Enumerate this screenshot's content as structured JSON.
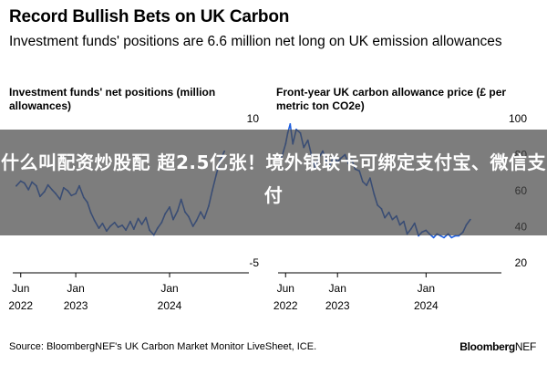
{
  "header": {
    "title": "Record Bullish Bets on UK Carbon",
    "subtitle": "Investment funds' positions are 6.6 million net long on UK emission allowances"
  },
  "overlay": {
    "text": "什么叫配资炒股配 超2.5亿张！境外银联卡可绑定支付宝、微信支付"
  },
  "footer": {
    "source": "Source: BloombergNEF's UK Carbon Market Monitor LiveSheet, ICE.",
    "brand_main": "Bloomberg",
    "brand_suffix": "NEF"
  },
  "colors": {
    "line": "#1f5fe0",
    "axis": "#000000",
    "overlay": "#464646"
  },
  "chart_data": [
    {
      "type": "line",
      "title": "Investment funds' net positions (million allowances)",
      "ylim": [
        -5,
        10
      ],
      "yticks": [
        -5,
        0,
        5,
        10
      ],
      "ytick_labels": [
        "-5",
        "",
        "",
        "10"
      ],
      "xlim": [
        "2022-05-01",
        "2024-09-30"
      ],
      "xticks": [
        {
          "date": "2022-06-01",
          "label1": "Jun",
          "label2": "2022"
        },
        {
          "date": "2023-01-01",
          "label1": "Jan",
          "label2": "2023"
        },
        {
          "date": "2024-01-01",
          "label1": "Jan",
          "label2": "2024"
        }
      ],
      "grid": false,
      "series": [
        {
          "x": [
            "2022-05-15",
            "2022-06-01",
            "2022-06-15",
            "2022-07-01",
            "2022-07-15",
            "2022-08-01",
            "2022-08-15",
            "2022-09-01",
            "2022-09-15",
            "2022-10-01",
            "2022-10-15",
            "2022-11-01",
            "2022-11-15",
            "2022-12-01",
            "2022-12-15",
            "2023-01-01",
            "2023-01-15",
            "2023-02-01",
            "2023-02-15",
            "2023-03-01",
            "2023-03-15",
            "2023-04-01",
            "2023-04-15",
            "2023-05-01",
            "2023-05-15",
            "2023-06-01",
            "2023-06-15",
            "2023-07-01",
            "2023-07-15",
            "2023-08-01",
            "2023-08-15",
            "2023-09-01",
            "2023-09-15",
            "2023-10-01",
            "2023-10-15",
            "2023-11-01",
            "2023-11-15",
            "2023-12-01",
            "2023-12-15",
            "2024-01-01",
            "2024-01-15",
            "2024-02-01",
            "2024-02-15",
            "2024-03-01",
            "2024-03-15",
            "2024-04-01",
            "2024-04-15",
            "2024-05-01",
            "2024-05-15",
            "2024-06-01",
            "2024-06-15",
            "2024-07-01",
            "2024-07-15",
            "2024-08-01"
          ],
          "y": [
            3.0,
            3.5,
            3.3,
            2.6,
            3.4,
            3.0,
            1.9,
            2.4,
            3.1,
            2.6,
            2.2,
            1.6,
            2.8,
            2.5,
            2.0,
            2.2,
            3.0,
            1.8,
            1.3,
            0.2,
            -0.6,
            -1.4,
            -0.9,
            -1.7,
            -1.2,
            -0.8,
            -1.3,
            -1.1,
            -1.6,
            -0.7,
            -1.5,
            -0.4,
            -1.0,
            -0.3,
            -1.6,
            -2.1,
            -1.4,
            -0.8,
            0.1,
            0.8,
            -0.5,
            0.4,
            1.6,
            0.3,
            -0.2,
            -1.2,
            -0.6,
            0.3,
            -0.4,
            0.9,
            2.5,
            4.2,
            5.6,
            6.6
          ]
        }
      ]
    },
    {
      "type": "line",
      "title": "Front-year UK carbon allowance price (£ per metric ton CO2e)",
      "ylim": [
        20,
        100
      ],
      "yticks": [
        20,
        40,
        60,
        80,
        100
      ],
      "ytick_labels": [
        "20",
        "40",
        "60",
        "80",
        "100"
      ],
      "xlim": [
        "2022-05-01",
        "2024-09-30"
      ],
      "xticks": [
        {
          "date": "2022-06-01",
          "label1": "Jun",
          "label2": "2022"
        },
        {
          "date": "2023-01-01",
          "label1": "Jan",
          "label2": "2023"
        },
        {
          "date": "2024-01-01",
          "label1": "Jan",
          "label2": "2024"
        }
      ],
      "grid": false,
      "series": [
        {
          "x": [
            "2022-05-15",
            "2022-06-01",
            "2022-06-10",
            "2022-06-20",
            "2022-07-01",
            "2022-07-15",
            "2022-08-01",
            "2022-08-15",
            "2022-09-01",
            "2022-09-15",
            "2022-10-01",
            "2022-10-15",
            "2022-11-01",
            "2022-11-15",
            "2022-12-01",
            "2022-12-15",
            "2023-01-01",
            "2023-01-15",
            "2023-02-01",
            "2023-02-15",
            "2023-03-01",
            "2023-03-15",
            "2023-04-01",
            "2023-04-15",
            "2023-05-01",
            "2023-05-15",
            "2023-06-01",
            "2023-06-15",
            "2023-07-01",
            "2023-07-15",
            "2023-08-01",
            "2023-08-15",
            "2023-09-01",
            "2023-09-15",
            "2023-10-01",
            "2023-10-15",
            "2023-11-01",
            "2023-11-15",
            "2023-12-01",
            "2023-12-15",
            "2024-01-01",
            "2024-01-15",
            "2024-02-01",
            "2024-02-15",
            "2024-03-01",
            "2024-03-15",
            "2024-04-01",
            "2024-04-15",
            "2024-05-01",
            "2024-05-15",
            "2024-06-01",
            "2024-06-15",
            "2024-07-01"
          ],
          "y": [
            78,
            86,
            92,
            97,
            86,
            94,
            92,
            84,
            88,
            80,
            73,
            78,
            82,
            77,
            74,
            79,
            76,
            78,
            80,
            75,
            77,
            72,
            71,
            65,
            63,
            67,
            58,
            52,
            50,
            45,
            48,
            44,
            46,
            41,
            43,
            36,
            39,
            42,
            35,
            37,
            38,
            36,
            34,
            36,
            35,
            34,
            36,
            34,
            35,
            35,
            37,
            41,
            44
          ]
        }
      ]
    }
  ]
}
